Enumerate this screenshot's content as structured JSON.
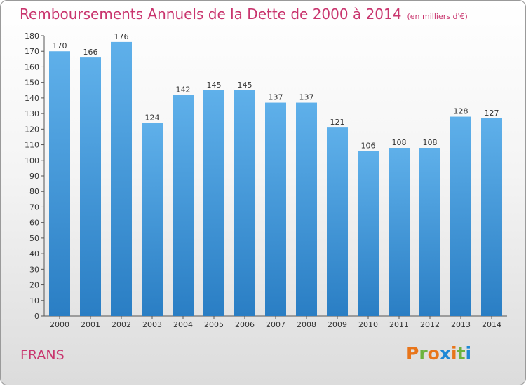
{
  "title": "Remboursements Annuels de la Dette de 2000 à 2014",
  "unit": "(en milliers d'€)",
  "commune": "FRANS",
  "logo": "Proxiti",
  "colors": {
    "title": "#c9356e",
    "bar_top": "#5fb0ea",
    "bar_bottom": "#2a7ec4",
    "logo_letters": [
      "#e8751a",
      "#6cb33f",
      "#e8751a",
      "#1e88d6",
      "#e8751a",
      "#6cb33f",
      "#1e88d6"
    ]
  },
  "chart_data": {
    "type": "bar",
    "title": "Remboursements Annuels de la Dette de 2000 à 2014",
    "categories": [
      "2000",
      "2001",
      "2002",
      "2003",
      "2004",
      "2005",
      "2006",
      "2007",
      "2008",
      "2009",
      "2010",
      "2011",
      "2012",
      "2013",
      "2014"
    ],
    "values": [
      170,
      166,
      176,
      124,
      142,
      145,
      145,
      137,
      137,
      121,
      106,
      108,
      108,
      128,
      127
    ],
    "ylim": [
      0,
      180
    ],
    "ytick_step": 10,
    "grid": false,
    "legend": "none"
  }
}
